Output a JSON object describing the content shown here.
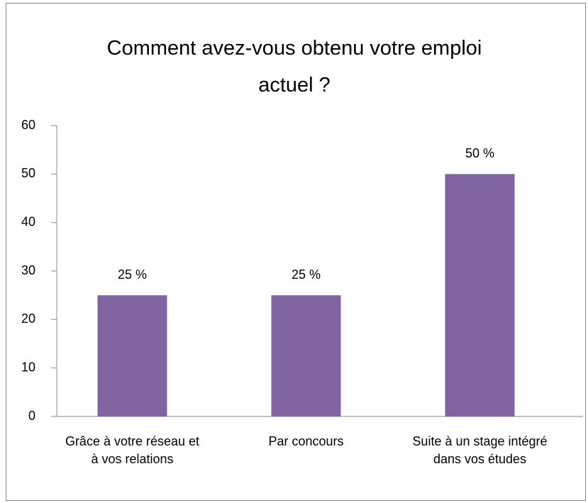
{
  "chart_data": {
    "type": "bar",
    "title": "Comment avez-vous obtenu votre emploi actuel ?",
    "categories": [
      "Grâce à votre réseau et à vos relations",
      "Par concours",
      "Suite à un stage intégré dans vos études"
    ],
    "values": [
      25,
      25,
      50
    ],
    "value_labels": [
      "25 %",
      "25 %",
      "50 %"
    ],
    "color": "#8064a2",
    "ylim": [
      0,
      60
    ],
    "yticks": [
      0,
      10,
      20,
      30,
      40,
      50,
      60
    ],
    "grid": false
  }
}
